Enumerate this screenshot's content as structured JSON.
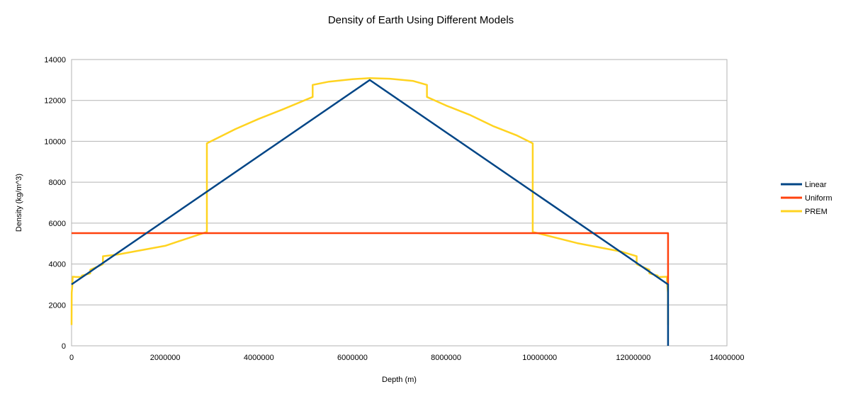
{
  "chart_data": {
    "type": "line",
    "title": "Density of Earth Using Different Models",
    "xlabel": "Depth (m)",
    "ylabel": "Density (kg/m^3)",
    "xlim": [
      0,
      14000000
    ],
    "ylim": [
      0,
      14000
    ],
    "x_ticks": [
      0,
      2000000,
      4000000,
      6000000,
      8000000,
      10000000,
      12000000,
      14000000
    ],
    "y_ticks": [
      0,
      2000,
      4000,
      6000,
      8000,
      10000,
      12000,
      14000
    ],
    "x_tick_labels": [
      "0",
      "2000000",
      "4000000",
      "6000000",
      "8000000",
      "10000000",
      "12000000",
      "14000000"
    ],
    "y_tick_labels": [
      "0",
      "2000",
      "4000",
      "6000",
      "8000",
      "10000",
      "12000",
      "14000"
    ],
    "grid": "horizontal",
    "legend_position": "right",
    "series": [
      {
        "name": "Linear",
        "color": "#004586",
        "x": [
          0,
          6371000,
          12742000,
          12742000
        ],
        "y": [
          3000,
          13000,
          3000,
          0
        ]
      },
      {
        "name": "Uniform",
        "color": "#ff420e",
        "x": [
          0,
          12742000,
          12742000
        ],
        "y": [
          5510,
          5510,
          3000
        ]
      },
      {
        "name": "PREM",
        "color": "#ffd320",
        "x": [
          0,
          3000,
          15000,
          24400,
          24400,
          80000,
          220000,
          220000,
          400000,
          400000,
          670000,
          670000,
          1000000,
          2000000,
          2891000,
          2891000,
          3500000,
          4000000,
          4500000,
          5150000,
          5150000,
          5500000,
          6000000,
          6371000,
          6800000,
          7300000,
          7592000,
          7592000,
          8000000,
          8500000,
          9000000,
          9500000,
          9851000,
          9851000,
          10800000,
          11742000,
          12072000,
          12072000,
          12342000,
          12342000,
          12522000,
          12522000,
          12718000,
          12727000,
          12739000,
          12742000
        ],
        "y": [
          1020,
          2600,
          2900,
          3380,
          3380,
          3370,
          3360,
          3430,
          3540,
          3720,
          3990,
          4380,
          4470,
          4890,
          5570,
          9900,
          10600,
          11100,
          11550,
          12170,
          12760,
          12920,
          13040,
          13090,
          13060,
          12950,
          12760,
          12170,
          11750,
          11300,
          10750,
          10300,
          9900,
          5570,
          5020,
          4610,
          4380,
          3990,
          3720,
          3540,
          3430,
          3360,
          3380,
          2900,
          2600,
          1020
        ]
      }
    ]
  }
}
